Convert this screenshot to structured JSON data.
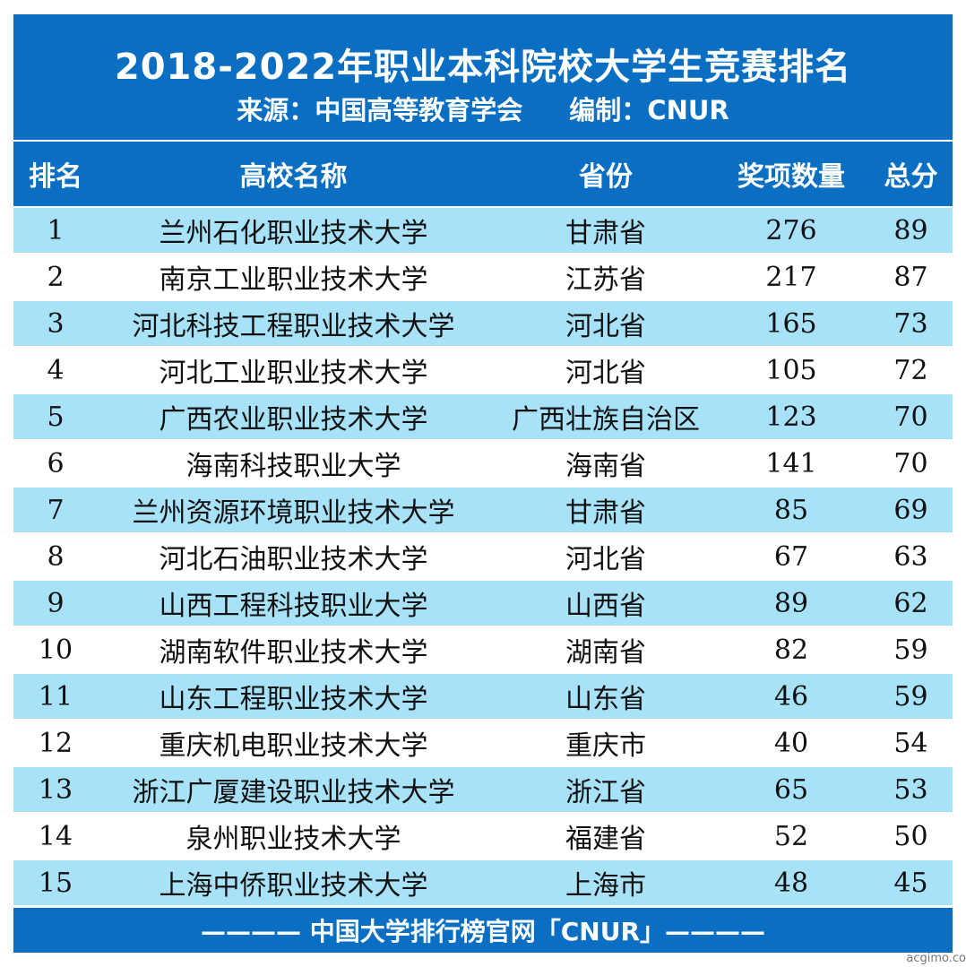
{
  "header": {
    "title": "2018-2022年职业本科院校大学生竞赛排名",
    "source": "来源：中国高等教育学会",
    "editor": "编制：CNUR"
  },
  "table": {
    "columns": [
      "排名",
      "高校名称",
      "省份",
      "奖项数量",
      "总分"
    ],
    "rows": [
      [
        1,
        "兰州石化职业技术大学",
        "甘肃省",
        276,
        89
      ],
      [
        2,
        "南京工业职业技术大学",
        "江苏省",
        217,
        87
      ],
      [
        3,
        "河北科技工程职业技术大学",
        "河北省",
        165,
        73
      ],
      [
        4,
        "河北工业职业技术大学",
        "河北省",
        105,
        72
      ],
      [
        5,
        "广西农业职业技术大学",
        "广西壮族自治区",
        123,
        70
      ],
      [
        6,
        "海南科技职业大学",
        "海南省",
        141,
        70
      ],
      [
        7,
        "兰州资源环境职业技术大学",
        "甘肃省",
        85,
        69
      ],
      [
        8,
        "河北石油职业技术大学",
        "河北省",
        67,
        63
      ],
      [
        9,
        "山西工程科技职业大学",
        "山西省",
        89,
        62
      ],
      [
        10,
        "湖南软件职业技术大学",
        "湖南省",
        82,
        59
      ],
      [
        11,
        "山东工程职业技术大学",
        "山东省",
        46,
        59
      ],
      [
        12,
        "重庆机电职业技术大学",
        "重庆市",
        40,
        54
      ],
      [
        13,
        "浙江广厦建设职业技术大学",
        "浙江省",
        65,
        53
      ],
      [
        14,
        "泉州职业技术大学",
        "福建省",
        52,
        50
      ],
      [
        15,
        "上海中侨职业技术大学",
        "上海市",
        48,
        45
      ]
    ]
  },
  "footer": {
    "text": "———— 中国大学排行榜官网「CNUR」————"
  },
  "watermark": "acgimo.co"
}
